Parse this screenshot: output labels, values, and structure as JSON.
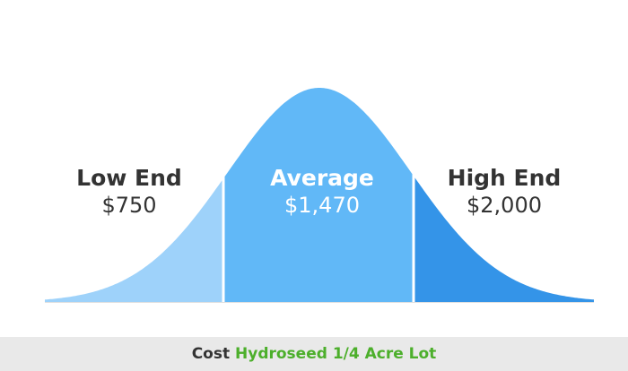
{
  "chart_data": {
    "type": "area",
    "categories": [
      "Low End",
      "Average",
      "High End"
    ],
    "values": [
      750,
      1470,
      2000
    ],
    "value_labels": [
      "$750",
      "$1,470",
      "$2,000"
    ],
    "series": [
      {
        "values": [
          750,
          1470,
          2000
        ]
      }
    ],
    "xlabel": "",
    "ylabel": "",
    "grid": false,
    "legend": "none"
  },
  "labels": {
    "low": {
      "title": "Low End",
      "value": "$750"
    },
    "avg": {
      "title": "Average",
      "value": "$1,470"
    },
    "high": {
      "title": "High End",
      "value": "$2,000"
    }
  },
  "footer": {
    "prefix": "Cost",
    "subject": "Hydroseed 1/4 Acre Lot"
  },
  "colors": {
    "low": "#9ed2fa",
    "avg": "#61b8f7",
    "high": "#3494e8",
    "divider": "#ffffff",
    "baseline": "#e0e0e0",
    "footer_bg": "#e9e9e9",
    "footer_accent": "#4caf2b",
    "text_dark": "#333333"
  }
}
